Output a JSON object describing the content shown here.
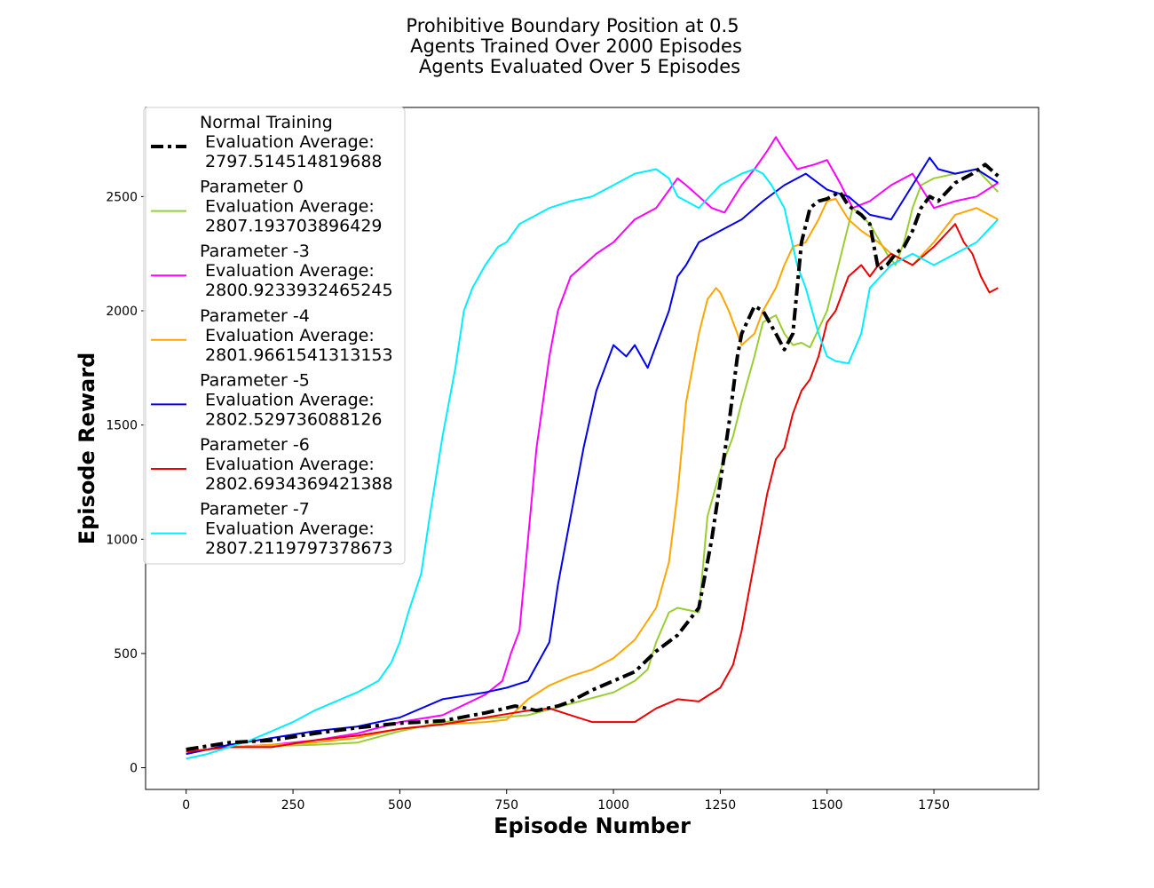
{
  "chart_data": {
    "type": "line",
    "title": [
      "Prohibitive Boundary Position at 0.5",
      "Agents Trained Over 2000 Episodes",
      "Agents Evaluated Over 5 Episodes"
    ],
    "xlabel": "Episode Number",
    "ylabel": "Episode Reward",
    "xlim": [
      -95,
      1995
    ],
    "ylim": [
      -95,
      2890
    ],
    "xticks": [
      0,
      250,
      500,
      750,
      1000,
      1250,
      1500,
      1750
    ],
    "yticks": [
      0,
      500,
      1000,
      1500,
      2000,
      2500
    ],
    "grid": false,
    "legend_position": "upper-left",
    "series": [
      {
        "name": "Normal Training",
        "legend_lines": [
          "Normal Training",
          " Evaluation Average:",
          " 2797.514514819688"
        ],
        "color": "#000000",
        "style": "dashdot",
        "x": [
          0,
          100,
          200,
          300,
          400,
          500,
          600,
          700,
          770,
          820,
          870,
          900,
          950,
          1000,
          1050,
          1100,
          1150,
          1200,
          1230,
          1250,
          1270,
          1290,
          1300,
          1330,
          1350,
          1380,
          1400,
          1420,
          1440,
          1460,
          1480,
          1500,
          1530,
          1550,
          1580,
          1600,
          1620,
          1640,
          1660,
          1680,
          1700,
          1720,
          1740,
          1760,
          1800,
          1840,
          1870,
          1900
        ],
        "y": [
          80,
          110,
          120,
          150,
          175,
          195,
          205,
          240,
          270,
          250,
          270,
          290,
          340,
          380,
          420,
          510,
          580,
          700,
          1000,
          1250,
          1500,
          1800,
          1900,
          2020,
          2000,
          1900,
          1830,
          1900,
          2300,
          2450,
          2480,
          2490,
          2520,
          2460,
          2420,
          2380,
          2180,
          2200,
          2250,
          2280,
          2350,
          2450,
          2500,
          2480,
          2560,
          2600,
          2640,
          2590
        ]
      },
      {
        "name": "Parameter 0",
        "legend_lines": [
          "Parameter 0",
          " Evaluation Average:",
          " 2807.193703896429"
        ],
        "color": "#9acd32",
        "style": "solid",
        "x": [
          0,
          100,
          200,
          300,
          400,
          500,
          600,
          700,
          800,
          900,
          1000,
          1050,
          1080,
          1100,
          1130,
          1150,
          1200,
          1220,
          1250,
          1280,
          1300,
          1330,
          1350,
          1380,
          1400,
          1420,
          1440,
          1460,
          1500,
          1520,
          1540,
          1560,
          1600,
          1640,
          1660,
          1680,
          1700,
          1720,
          1750,
          1800,
          1850,
          1900
        ],
        "y": [
          70,
          90,
          95,
          100,
          110,
          160,
          200,
          215,
          230,
          280,
          330,
          380,
          430,
          550,
          680,
          700,
          680,
          1100,
          1300,
          1450,
          1600,
          1800,
          1950,
          1980,
          1900,
          1850,
          1860,
          1840,
          2000,
          2150,
          2300,
          2450,
          2380,
          2250,
          2200,
          2300,
          2450,
          2550,
          2580,
          2600,
          2620,
          2520
        ]
      },
      {
        "name": "Parameter -3",
        "legend_lines": [
          "Parameter -3",
          " Evaluation Average:",
          " 2800.9233932465245"
        ],
        "color": "#ff00ff",
        "style": "solid",
        "x": [
          0,
          100,
          200,
          300,
          400,
          500,
          600,
          700,
          740,
          760,
          780,
          800,
          820,
          850,
          870,
          900,
          930,
          960,
          1000,
          1050,
          1100,
          1150,
          1170,
          1200,
          1230,
          1260,
          1300,
          1330,
          1360,
          1380,
          1400,
          1430,
          1470,
          1500,
          1530,
          1560,
          1600,
          1650,
          1700,
          1750,
          1800,
          1850,
          1900
        ],
        "y": [
          70,
          90,
          100,
          120,
          150,
          200,
          230,
          320,
          380,
          500,
          600,
          1000,
          1400,
          1800,
          2000,
          2150,
          2200,
          2250,
          2300,
          2400,
          2450,
          2580,
          2550,
          2500,
          2450,
          2430,
          2550,
          2620,
          2700,
          2760,
          2700,
          2620,
          2640,
          2660,
          2560,
          2450,
          2480,
          2550,
          2600,
          2450,
          2480,
          2500,
          2560
        ]
      },
      {
        "name": "Parameter -4",
        "legend_lines": [
          "Parameter -4",
          " Evaluation Average:",
          " 2801.9661541313153"
        ],
        "color": "#ffa500",
        "style": "solid",
        "x": [
          0,
          100,
          200,
          300,
          400,
          500,
          600,
          700,
          750,
          800,
          850,
          900,
          950,
          1000,
          1050,
          1100,
          1130,
          1150,
          1170,
          1200,
          1220,
          1240,
          1250,
          1270,
          1300,
          1330,
          1350,
          1380,
          1400,
          1420,
          1450,
          1480,
          1500,
          1520,
          1550,
          1580,
          1620,
          1650,
          1700,
          1750,
          1800,
          1850,
          1870,
          1900
        ],
        "y": [
          70,
          90,
          100,
          110,
          130,
          170,
          190,
          200,
          210,
          300,
          360,
          400,
          430,
          480,
          560,
          700,
          900,
          1200,
          1600,
          1900,
          2050,
          2100,
          2080,
          2000,
          1850,
          1900,
          2000,
          2100,
          2200,
          2280,
          2300,
          2400,
          2480,
          2490,
          2400,
          2350,
          2300,
          2250,
          2200,
          2300,
          2420,
          2450,
          2430,
          2400
        ]
      },
      {
        "name": "Parameter -5",
        "legend_lines": [
          "Parameter -5",
          " Evaluation Average:",
          " 2802.529736088126"
        ],
        "color": "#0000ee",
        "style": "solid",
        "x": [
          0,
          100,
          200,
          300,
          400,
          500,
          600,
          700,
          750,
          800,
          850,
          870,
          900,
          930,
          960,
          980,
          1000,
          1030,
          1050,
          1080,
          1100,
          1130,
          1150,
          1170,
          1200,
          1250,
          1300,
          1350,
          1400,
          1450,
          1500,
          1550,
          1600,
          1650,
          1700,
          1740,
          1760,
          1800,
          1850,
          1900
        ],
        "y": [
          60,
          100,
          130,
          160,
          180,
          220,
          300,
          330,
          350,
          380,
          550,
          800,
          1100,
          1400,
          1650,
          1750,
          1850,
          1800,
          1850,
          1750,
          1850,
          2000,
          2150,
          2200,
          2300,
          2350,
          2400,
          2480,
          2550,
          2600,
          2530,
          2500,
          2420,
          2400,
          2550,
          2670,
          2620,
          2600,
          2620,
          2560
        ]
      },
      {
        "name": "Parameter -6",
        "legend_lines": [
          "Parameter -6",
          " Evaluation Average:",
          " 2802.6934369421388"
        ],
        "color": "#ee0000",
        "style": "solid",
        "x": [
          0,
          100,
          200,
          300,
          400,
          500,
          600,
          700,
          800,
          850,
          900,
          950,
          1000,
          1050,
          1100,
          1150,
          1200,
          1250,
          1280,
          1300,
          1320,
          1340,
          1360,
          1380,
          1400,
          1420,
          1440,
          1460,
          1480,
          1500,
          1520,
          1550,
          1580,
          1600,
          1620,
          1650,
          1700,
          1750,
          1800,
          1820,
          1840,
          1860,
          1880,
          1900
        ],
        "y": [
          70,
          90,
          90,
          120,
          140,
          170,
          190,
          220,
          250,
          260,
          230,
          200,
          200,
          200,
          260,
          300,
          290,
          350,
          450,
          600,
          800,
          1000,
          1200,
          1350,
          1400,
          1550,
          1650,
          1700,
          1800,
          1950,
          2000,
          2150,
          2200,
          2150,
          2200,
          2250,
          2200,
          2280,
          2380,
          2300,
          2250,
          2150,
          2080,
          2100
        ]
      },
      {
        "name": "Parameter -7",
        "legend_lines": [
          "Parameter -7",
          " Evaluation Average:",
          " 2807.2119797378673"
        ],
        "color": "#00eeff",
        "style": "solid",
        "x": [
          0,
          50,
          100,
          150,
          200,
          250,
          300,
          350,
          400,
          450,
          480,
          500,
          520,
          550,
          570,
          600,
          630,
          650,
          670,
          700,
          730,
          750,
          780,
          800,
          850,
          900,
          950,
          1000,
          1050,
          1100,
          1130,
          1150,
          1200,
          1250,
          1300,
          1330,
          1350,
          1370,
          1400,
          1430,
          1450,
          1480,
          1500,
          1520,
          1550,
          1580,
          1600,
          1650,
          1700,
          1750,
          1800,
          1850,
          1900
        ],
        "y": [
          40,
          60,
          90,
          120,
          160,
          200,
          250,
          290,
          330,
          380,
          460,
          550,
          680,
          850,
          1100,
          1450,
          1750,
          2000,
          2100,
          2200,
          2280,
          2300,
          2380,
          2400,
          2450,
          2480,
          2500,
          2550,
          2600,
          2620,
          2580,
          2500,
          2450,
          2550,
          2600,
          2620,
          2600,
          2550,
          2450,
          2200,
          2100,
          1900,
          1800,
          1780,
          1770,
          1900,
          2100,
          2200,
          2250,
          2200,
          2250,
          2300,
          2400
        ]
      }
    ]
  }
}
